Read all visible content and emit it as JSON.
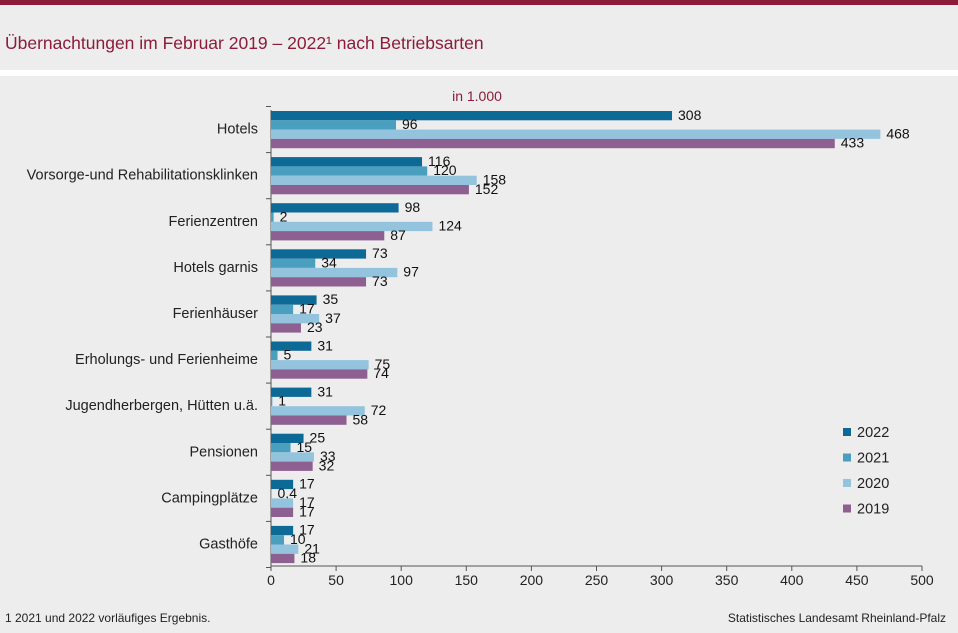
{
  "title": "Übernachtungen im Februar 2019 – 2022¹ nach Betriebsarten",
  "unit_label": "in 1.000",
  "footnote": "1 2021 und 2022 vorläufiges  Ergebnis.",
  "source": "Statistisches Landesamt Rheinland-Pfalz",
  "chart_data": {
    "type": "bar",
    "orientation": "horizontal",
    "categories": [
      "Hotels",
      "Vorsorge-und Rehabilitationsklinken",
      "Ferienzentren",
      "Hotels garnis",
      "Ferienhäuser",
      "Erholungs- und Ferienheime",
      "Jugendherbergen, Hütten u.ä.",
      "Pensionen",
      "Campingplätze",
      "Gasthöfe"
    ],
    "series": [
      {
        "name": "2022",
        "color": "#0d6a96",
        "values": [
          308,
          116,
          98,
          73,
          35,
          31,
          31,
          25,
          17,
          17
        ],
        "labels": [
          "308",
          "116",
          "98",
          "73",
          "35",
          "31",
          "31",
          "25",
          "17",
          "17"
        ]
      },
      {
        "name": "2021",
        "color": "#4a9ebe",
        "values": [
          96,
          120,
          2,
          34,
          17,
          5,
          1,
          15,
          0.4,
          10
        ],
        "labels": [
          "96",
          "120",
          "2",
          "34",
          "17",
          "5",
          "1",
          "15",
          "0,4",
          "10"
        ]
      },
      {
        "name": "2020",
        "color": "#93c3dd",
        "values": [
          468,
          158,
          124,
          97,
          37,
          75,
          72,
          33,
          17,
          21
        ],
        "labels": [
          "468",
          "158",
          "124",
          "97",
          "37",
          "75",
          "72",
          "33",
          "17",
          "21"
        ]
      },
      {
        "name": "2019",
        "color": "#8e5f91",
        "values": [
          433,
          152,
          87,
          73,
          23,
          74,
          58,
          32,
          17,
          18
        ],
        "labels": [
          "433",
          "152",
          "87",
          "73",
          "23",
          "74",
          "58",
          "32",
          "17",
          "18"
        ]
      }
    ],
    "xlim": [
      0,
      500
    ],
    "xticks": [
      "0",
      "50",
      "100",
      "150",
      "200",
      "250",
      "300",
      "350",
      "400",
      "450",
      "500"
    ],
    "legend": {
      "placement": "right",
      "order": [
        "2022",
        "2021",
        "2020",
        "2019"
      ]
    }
  }
}
